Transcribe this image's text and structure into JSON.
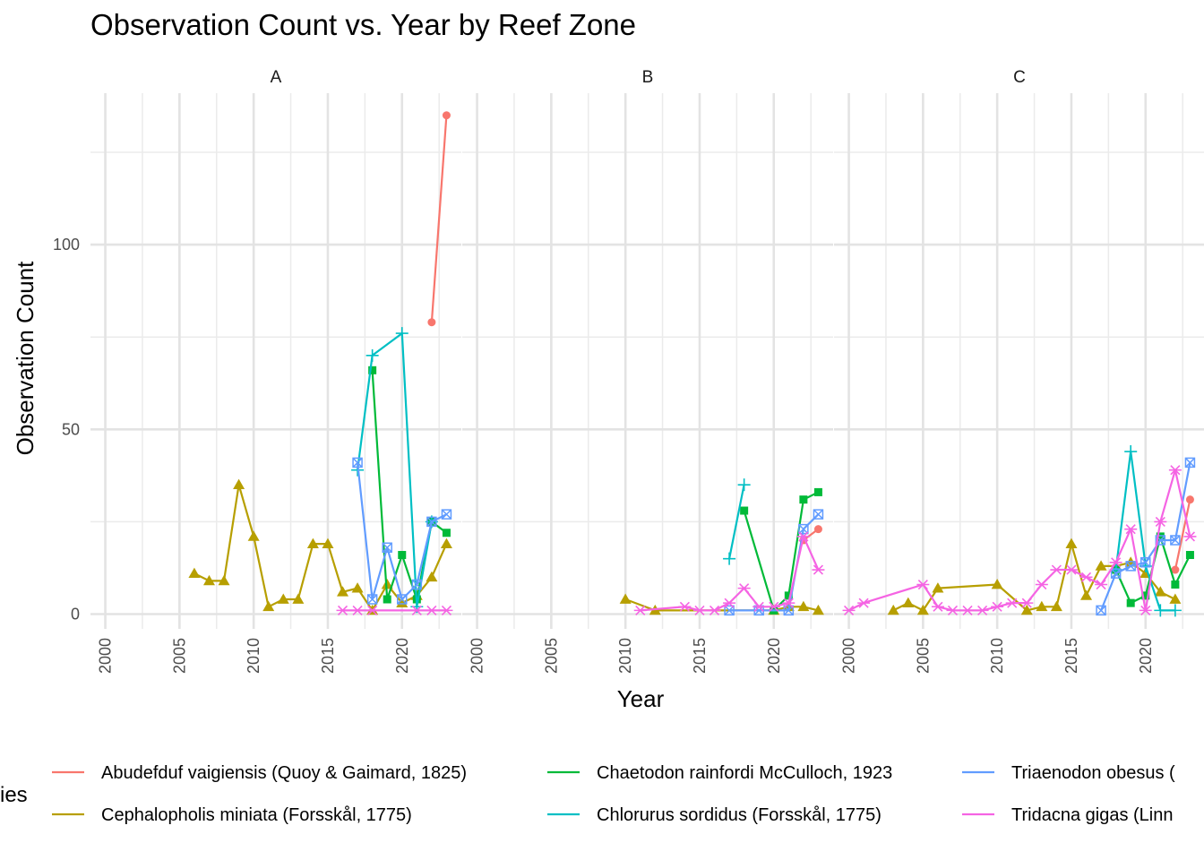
{
  "chart_data": {
    "type": "line",
    "title": "Observation Count vs. Year by Reef Zone",
    "xlabel": "Year",
    "ylabel": "Observation Count",
    "legend_title": "ies",
    "legend_position": "bottom",
    "grid": true,
    "xlim": [
      1999,
      2024
    ],
    "ylim": [
      -4,
      141
    ],
    "x_ticks": [
      2000,
      2005,
      2010,
      2015,
      2020
    ],
    "y_ticks": [
      0,
      50,
      100
    ],
    "facets": [
      "A",
      "B",
      "C"
    ],
    "species": [
      {
        "name": "Abudefduf vaigiensis (Quoy & Gaimard, 1825)",
        "legend_label": "Abudefduf vaigiensis (Quoy & Gaimard, 1825)",
        "color": "#F8766D",
        "shape": "circle"
      },
      {
        "name": "Cephalopholis miniata (Forsskål, 1775)",
        "legend_label": "Cephalopholis miniata (Forsskål, 1775)",
        "color": "#B79F00",
        "shape": "triangle"
      },
      {
        "name": "Chaetodon rainfordi McCulloch, 1923",
        "legend_label": "Chaetodon rainfordi McCulloch, 1923",
        "color": "#00BA38",
        "shape": "square"
      },
      {
        "name": "Chlorurus sordidus (Forsskål, 1775)",
        "legend_label": "Chlorurus sordidus (Forsskål, 1775)",
        "color": "#00BFC4",
        "shape": "plus"
      },
      {
        "name": "Triaenodon obesus",
        "legend_label": "Triaenodon obesus (",
        "color": "#619CFF",
        "shape": "boxcross"
      },
      {
        "name": "Tridacna gigas",
        "legend_label": "Tridacna gigas (Linn",
        "color": "#F564E3",
        "shape": "asterisk"
      }
    ],
    "series": [
      {
        "facet": "A",
        "species": 0,
        "points": [
          [
            2022,
            79
          ],
          [
            2023,
            135
          ]
        ]
      },
      {
        "facet": "A",
        "species": 1,
        "points": [
          [
            2006,
            11
          ],
          [
            2007,
            9
          ],
          [
            2008,
            9
          ],
          [
            2009,
            35
          ],
          [
            2010,
            21
          ],
          [
            2011,
            2
          ],
          [
            2012,
            4
          ],
          [
            2013,
            4
          ],
          [
            2014,
            19
          ],
          [
            2015,
            19
          ],
          [
            2016,
            6
          ],
          [
            2017,
            7
          ],
          [
            2018,
            1
          ],
          [
            2019,
            8
          ],
          [
            2020,
            3
          ],
          [
            2021,
            5
          ],
          [
            2022,
            10
          ],
          [
            2023,
            19
          ]
        ]
      },
      {
        "facet": "A",
        "species": 2,
        "points": [
          [
            2018,
            66
          ],
          [
            2019,
            4
          ],
          [
            2020,
            16
          ],
          [
            2021,
            4
          ],
          [
            2022,
            25
          ],
          [
            2023,
            22
          ]
        ]
      },
      {
        "facet": "A",
        "species": 3,
        "points": [
          [
            2017,
            39
          ],
          [
            2018,
            70
          ],
          [
            2020,
            76
          ],
          [
            2021,
            2
          ],
          [
            2022,
            25
          ]
        ]
      },
      {
        "facet": "A",
        "species": 4,
        "points": [
          [
            2017,
            41
          ],
          [
            2018,
            4
          ],
          [
            2019,
            18
          ],
          [
            2020,
            4
          ],
          [
            2021,
            8
          ],
          [
            2022,
            25
          ],
          [
            2023,
            27
          ]
        ]
      },
      {
        "facet": "A",
        "species": 5,
        "points": [
          [
            2016,
            1
          ],
          [
            2017,
            1
          ],
          [
            2018,
            1
          ],
          [
            2021,
            1
          ],
          [
            2022,
            1
          ],
          [
            2023,
            1
          ]
        ]
      },
      {
        "facet": "B",
        "species": 0,
        "points": [
          [
            2022,
            20
          ],
          [
            2023,
            23
          ]
        ]
      },
      {
        "facet": "B",
        "species": 1,
        "points": [
          [
            2010,
            4
          ],
          [
            2012,
            1
          ],
          [
            2020,
            1
          ],
          [
            2021,
            2
          ],
          [
            2022,
            2
          ],
          [
            2023,
            1
          ]
        ]
      },
      {
        "facet": "B",
        "species": 2,
        "points": [
          [
            2018,
            28
          ],
          [
            2020,
            1
          ],
          [
            2021,
            5
          ],
          [
            2022,
            31
          ],
          [
            2023,
            33
          ]
        ]
      },
      {
        "facet": "B",
        "species": 3,
        "points": [
          [
            2017,
            15
          ],
          [
            2018,
            35
          ]
        ]
      },
      {
        "facet": "B",
        "species": 4,
        "points": [
          [
            2017,
            1
          ],
          [
            2019,
            1
          ],
          [
            2021,
            1
          ],
          [
            2022,
            23
          ],
          [
            2023,
            27
          ]
        ]
      },
      {
        "facet": "B",
        "species": 5,
        "points": [
          [
            2011,
            1
          ],
          [
            2014,
            2
          ],
          [
            2015,
            1
          ],
          [
            2016,
            1
          ],
          [
            2017,
            3
          ],
          [
            2018,
            7
          ],
          [
            2019,
            2
          ],
          [
            2020,
            2
          ],
          [
            2021,
            3
          ],
          [
            2022,
            21
          ],
          [
            2023,
            12
          ]
        ]
      },
      {
        "facet": "C",
        "species": 0,
        "points": [
          [
            2022,
            12
          ],
          [
            2023,
            31
          ]
        ]
      },
      {
        "facet": "C",
        "species": 1,
        "points": [
          [
            2003,
            1
          ],
          [
            2004,
            3
          ],
          [
            2005,
            1
          ],
          [
            2006,
            7
          ],
          [
            2010,
            8
          ],
          [
            2012,
            1
          ],
          [
            2013,
            2
          ],
          [
            2014,
            2
          ],
          [
            2015,
            19
          ],
          [
            2016,
            5
          ],
          [
            2017,
            13
          ],
          [
            2018,
            13
          ],
          [
            2019,
            14
          ],
          [
            2020,
            11
          ],
          [
            2021,
            6
          ],
          [
            2022,
            4
          ]
        ]
      },
      {
        "facet": "C",
        "species": 2,
        "points": [
          [
            2018,
            12
          ],
          [
            2019,
            3
          ],
          [
            2020,
            5
          ],
          [
            2021,
            21
          ],
          [
            2022,
            8
          ],
          [
            2023,
            16
          ]
        ]
      },
      {
        "facet": "C",
        "species": 3,
        "points": [
          [
            2018,
            12
          ],
          [
            2019,
            44
          ],
          [
            2020,
            13
          ],
          [
            2021,
            1
          ],
          [
            2022,
            1
          ]
        ]
      },
      {
        "facet": "C",
        "species": 4,
        "points": [
          [
            2017,
            1
          ],
          [
            2018,
            11
          ],
          [
            2019,
            13
          ],
          [
            2020,
            14
          ],
          [
            2021,
            20
          ],
          [
            2022,
            20
          ],
          [
            2023,
            41
          ]
        ]
      },
      {
        "facet": "C",
        "species": 5,
        "points": [
          [
            2000,
            1
          ],
          [
            2001,
            3
          ],
          [
            2005,
            8
          ],
          [
            2006,
            2
          ],
          [
            2007,
            1
          ],
          [
            2008,
            1
          ],
          [
            2009,
            1
          ],
          [
            2010,
            2
          ],
          [
            2011,
            3
          ],
          [
            2012,
            3
          ],
          [
            2013,
            8
          ],
          [
            2014,
            12
          ],
          [
            2015,
            12
          ],
          [
            2016,
            10
          ],
          [
            2017,
            8
          ],
          [
            2018,
            14
          ],
          [
            2019,
            23
          ],
          [
            2020,
            1
          ],
          [
            2021,
            25
          ],
          [
            2022,
            39
          ],
          [
            2023,
            21
          ]
        ]
      }
    ]
  }
}
